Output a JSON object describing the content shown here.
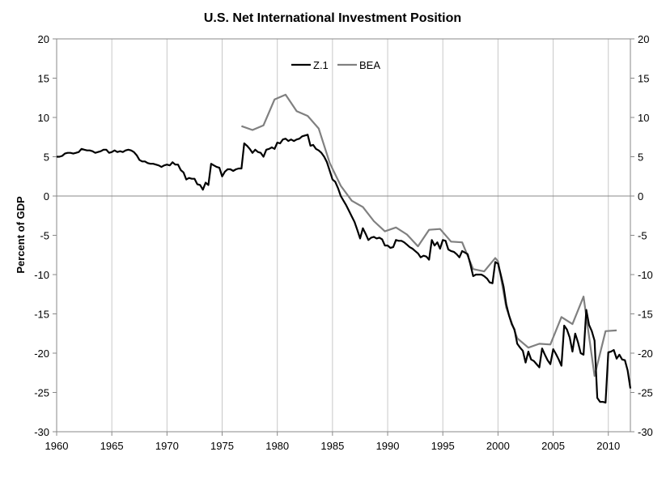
{
  "chart_data": {
    "type": "line",
    "title": "U.S. Net International Investment Position",
    "xlabel": "",
    "ylabel": "Percent of GDP",
    "xlim": [
      1960,
      2012
    ],
    "ylim": [
      -30,
      20
    ],
    "x_ticks": [
      "1960",
      "1965",
      "1970",
      "1975",
      "1980",
      "1985",
      "1990",
      "1995",
      "2000",
      "2005",
      "2010"
    ],
    "y_ticks": [
      "-30",
      "-25",
      "-20",
      "-15",
      "-10",
      "-5",
      "0",
      "5",
      "10",
      "15",
      "20"
    ],
    "grid": "vertical lines at x ticks",
    "legend": "top-center",
    "series": [
      {
        "name": "Z.1",
        "color": "#000000",
        "x": [
          1960.0,
          1960.25,
          1960.5,
          1960.75,
          1961.0,
          1961.25,
          1961.5,
          1961.75,
          1962.0,
          1962.25,
          1962.5,
          1962.75,
          1963.0,
          1963.25,
          1963.5,
          1963.75,
          1964.0,
          1964.25,
          1964.5,
          1964.75,
          1965.0,
          1965.25,
          1965.5,
          1965.75,
          1966.0,
          1966.25,
          1966.5,
          1966.75,
          1967.0,
          1967.25,
          1967.5,
          1967.75,
          1968.0,
          1968.25,
          1968.5,
          1968.75,
          1969.0,
          1969.25,
          1969.5,
          1969.75,
          1970.0,
          1970.25,
          1970.5,
          1970.75,
          1971.0,
          1971.25,
          1971.5,
          1971.75,
          1972.0,
          1972.25,
          1972.5,
          1972.75,
          1973.0,
          1973.25,
          1973.5,
          1973.75,
          1974.0,
          1974.25,
          1974.5,
          1974.75,
          1975.0,
          1975.25,
          1975.5,
          1975.75,
          1976.0,
          1976.25,
          1976.5,
          1976.75,
          1977.0,
          1977.25,
          1977.5,
          1977.75,
          1978.0,
          1978.25,
          1978.5,
          1978.75,
          1979.0,
          1979.25,
          1979.5,
          1979.75,
          1980.0,
          1980.25,
          1980.5,
          1980.75,
          1981.0,
          1981.25,
          1981.5,
          1981.75,
          1982.0,
          1982.25,
          1982.5,
          1982.75,
          1983.0,
          1983.25,
          1983.5,
          1983.75,
          1984.0,
          1984.25,
          1984.5,
          1984.75,
          1985.0,
          1985.25,
          1985.5,
          1985.75,
          1986.0,
          1986.25,
          1986.5,
          1986.75,
          1987.0,
          1987.25,
          1987.5,
          1987.75,
          1988.0,
          1988.25,
          1988.5,
          1988.75,
          1989.0,
          1989.25,
          1989.5,
          1989.75,
          1990.0,
          1990.25,
          1990.5,
          1990.75,
          1991.0,
          1991.25,
          1991.5,
          1991.75,
          1992.0,
          1992.25,
          1992.5,
          1992.75,
          1993.0,
          1993.25,
          1993.5,
          1993.75,
          1994.0,
          1994.25,
          1994.5,
          1994.75,
          1995.0,
          1995.25,
          1995.5,
          1995.75,
          1996.0,
          1996.25,
          1996.5,
          1996.75,
          1997.0,
          1997.25,
          1997.5,
          1997.75,
          1998.0,
          1998.25,
          1998.5,
          1998.75,
          1999.0,
          1999.25,
          1999.5,
          1999.75,
          2000.0,
          2000.25,
          2000.5,
          2000.75,
          2001.0,
          2001.25,
          2001.5,
          2001.75,
          2002.0,
          2002.25,
          2002.5,
          2002.75,
          2003.0,
          2003.25,
          2003.5,
          2003.75,
          2004.0,
          2004.25,
          2004.5,
          2004.75,
          2005.0,
          2005.25,
          2005.5,
          2005.75,
          2006.0,
          2006.25,
          2006.5,
          2006.75,
          2007.0,
          2007.25,
          2007.5,
          2007.75,
          2008.0,
          2008.25,
          2008.5,
          2008.75,
          2009.0,
          2009.25,
          2009.5,
          2009.75,
          2010.0,
          2010.25,
          2010.5,
          2010.75,
          2011.0,
          2011.25,
          2011.5,
          2011.75,
          2012.0
        ],
        "values": [
          5.0,
          5.0,
          5.1,
          5.4,
          5.5,
          5.5,
          5.4,
          5.5,
          5.6,
          6.0,
          5.9,
          5.8,
          5.8,
          5.7,
          5.5,
          5.6,
          5.7,
          5.9,
          5.9,
          5.5,
          5.6,
          5.8,
          5.6,
          5.7,
          5.6,
          5.8,
          5.9,
          5.8,
          5.6,
          5.2,
          4.6,
          4.4,
          4.4,
          4.2,
          4.1,
          4.1,
          4.0,
          3.9,
          3.7,
          3.9,
          4.0,
          3.9,
          4.3,
          4.0,
          4.0,
          3.3,
          3.0,
          2.1,
          2.3,
          2.2,
          2.2,
          1.5,
          1.4,
          0.8,
          1.7,
          1.4,
          4.1,
          3.9,
          3.7,
          3.6,
          2.5,
          3.1,
          3.4,
          3.4,
          3.2,
          3.4,
          3.5,
          3.5,
          6.7,
          6.4,
          6.0,
          5.5,
          5.9,
          5.6,
          5.5,
          5.0,
          5.9,
          6.0,
          6.2,
          6.0,
          6.8,
          6.7,
          7.2,
          7.3,
          7.0,
          7.2,
          7.0,
          7.2,
          7.3,
          7.6,
          7.7,
          7.8,
          6.4,
          6.5,
          6.0,
          5.8,
          5.5,
          5.0,
          4.3,
          3.2,
          2.1,
          1.8,
          1.0,
          0.0,
          -0.6,
          -1.2,
          -1.9,
          -2.6,
          -3.3,
          -4.3,
          -5.4,
          -4.1,
          -4.8,
          -5.6,
          -5.3,
          -5.2,
          -5.4,
          -5.3,
          -5.5,
          -6.3,
          -6.3,
          -6.6,
          -6.5,
          -5.6,
          -5.7,
          -5.7,
          -5.9,
          -6.2,
          -6.5,
          -6.7,
          -7.0,
          -7.3,
          -7.8,
          -7.6,
          -7.7,
          -8.1,
          -5.6,
          -6.3,
          -5.9,
          -6.7,
          -5.6,
          -5.7,
          -6.8,
          -7.0,
          -7.1,
          -7.4,
          -7.8,
          -7.0,
          -7.2,
          -7.4,
          -8.7,
          -10.2,
          -10.0,
          -10.0,
          -10.0,
          -10.2,
          -10.5,
          -11.0,
          -11.1,
          -8.4,
          -8.6,
          -10.0,
          -11.5,
          -13.8,
          -15.2,
          -16.3,
          -17.0,
          -18.8,
          -19.3,
          -19.7,
          -21.2,
          -19.8,
          -20.8,
          -21.0,
          -21.4,
          -21.8,
          -19.4,
          -20.2,
          -20.9,
          -21.4,
          -19.5,
          -20.1,
          -20.8,
          -21.6,
          -16.5,
          -17.0,
          -18.0,
          -19.8,
          -17.5,
          -18.6,
          -20.0,
          -20.2,
          -14.5,
          -16.4,
          -17.2,
          -18.4,
          -25.7,
          -26.2,
          -26.2,
          -26.3,
          -19.9,
          -19.8,
          -19.6,
          -20.7,
          -20.2,
          -20.8,
          -20.9,
          -22.2,
          -24.5
        ]
      },
      {
        "name": "BEA",
        "color": "#808080",
        "x": [
          1976.75,
          1977.75,
          1978.75,
          1979.75,
          1980.75,
          1981.75,
          1982.75,
          1983.75,
          1984.75,
          1985.75,
          1986.75,
          1987.75,
          1988.75,
          1989.75,
          1990.75,
          1991.75,
          1992.75,
          1993.75,
          1994.75,
          1995.75,
          1996.75,
          1997.75,
          1998.75,
          1999.75,
          2000.0,
          2000.75,
          2001.75,
          2002.75,
          2003.75,
          2004.75,
          2005.75,
          2006.75,
          2007.75,
          2008.75,
          2009.75,
          2010.75
        ],
        "values": [
          8.9,
          8.4,
          9.0,
          12.3,
          12.9,
          10.8,
          10.2,
          8.6,
          4.2,
          1.3,
          -0.6,
          -1.4,
          -3.2,
          -4.5,
          -4.0,
          -4.9,
          -6.4,
          -4.3,
          -4.2,
          -5.8,
          -5.9,
          -9.3,
          -9.6,
          -7.9,
          -8.3,
          -14.2,
          -18.1,
          -19.3,
          -18.8,
          -18.9,
          -15.4,
          -16.3,
          -12.8,
          -22.9,
          -17.2,
          -17.1
        ]
      }
    ]
  }
}
